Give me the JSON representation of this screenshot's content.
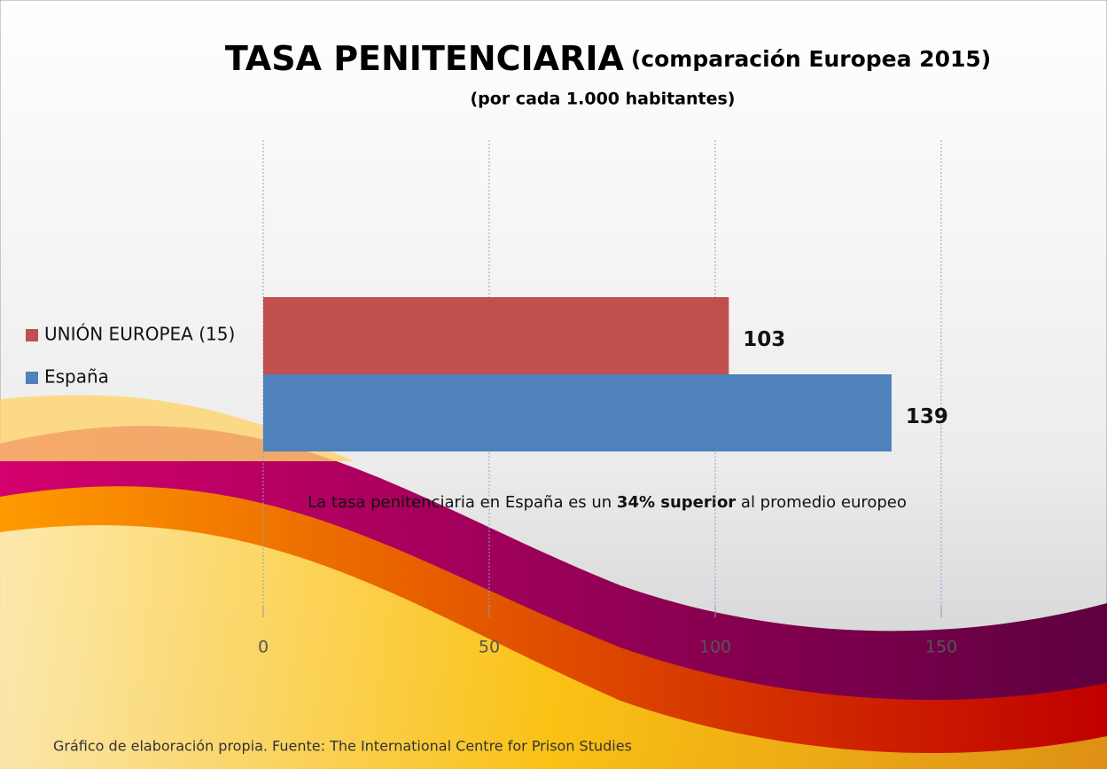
{
  "chart_data": {
    "type": "bar",
    "orientation": "horizontal",
    "title": "TASA PENITENCIARIA",
    "title_note": "(comparación  Europea 2015)",
    "subtitle": "(por cada 1.000 habitantes)",
    "series": [
      {
        "name": "UNIÓN EUROPEA (15)",
        "color": "#c0504d",
        "values": [
          103
        ]
      },
      {
        "name": "España",
        "color": "#4f81bd",
        "values": [
          139
        ]
      }
    ],
    "xlim": [
      0,
      150
    ],
    "xticks": [
      0,
      50,
      100,
      150
    ],
    "grid": true,
    "legend": "left",
    "annotation": [
      "La tasa penitenciaria en España es un ",
      "34% superior",
      " al promedio europeo"
    ],
    "footnote": "Gráfico de elaboración propia. Fuente: The International Centre for Prison Studies"
  }
}
